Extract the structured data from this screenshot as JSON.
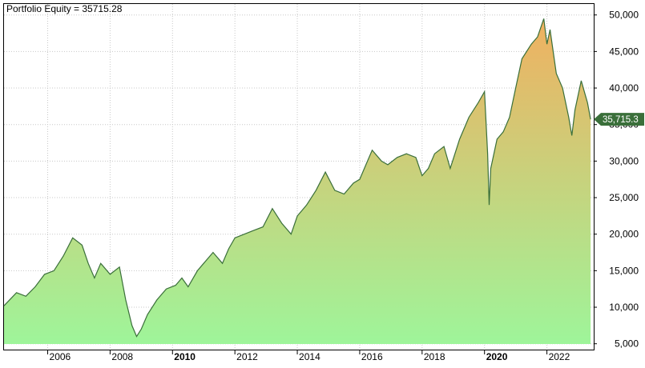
{
  "chart_data": {
    "type": "area",
    "title": "Portfolio Equity = 35715.28",
    "series": [
      {
        "name": "Portfolio Equity",
        "x": [
          2004.6,
          2005.0,
          2005.3,
          2005.6,
          2005.9,
          2006.2,
          2006.5,
          2006.8,
          2007.1,
          2007.3,
          2007.5,
          2007.7,
          2008.0,
          2008.3,
          2008.5,
          2008.7,
          2008.85,
          2009.0,
          2009.2,
          2009.5,
          2009.8,
          2010.1,
          2010.3,
          2010.5,
          2010.8,
          2011.0,
          2011.3,
          2011.6,
          2011.8,
          2012.0,
          2012.3,
          2012.6,
          2012.9,
          2013.2,
          2013.5,
          2013.8,
          2014.0,
          2014.3,
          2014.6,
          2014.9,
          2015.2,
          2015.5,
          2015.8,
          2016.0,
          2016.2,
          2016.4,
          2016.7,
          2016.9,
          2017.2,
          2017.5,
          2017.8,
          2018.0,
          2018.2,
          2018.4,
          2018.7,
          2018.9,
          2019.2,
          2019.5,
          2019.8,
          2020.0,
          2020.1,
          2020.15,
          2020.2,
          2020.4,
          2020.6,
          2020.8,
          2021.0,
          2021.2,
          2021.5,
          2021.7,
          2021.9,
          2022.0,
          2022.1,
          2022.3,
          2022.5,
          2022.7,
          2022.8,
          2022.9,
          2023.1,
          2023.3,
          2023.4
        ],
        "values": [
          10200,
          12000,
          11500,
          12800,
          14500,
          15000,
          17000,
          19500,
          18500,
          16000,
          14000,
          16000,
          14500,
          15500,
          11000,
          7500,
          6000,
          7000,
          9000,
          11000,
          12500,
          13000,
          14000,
          12800,
          15000,
          16000,
          17500,
          16000,
          18000,
          19500,
          20000,
          20500,
          21000,
          23500,
          21500,
          20000,
          22500,
          24000,
          26000,
          28500,
          26000,
          25500,
          27000,
          27500,
          29500,
          31500,
          30000,
          29500,
          30500,
          31000,
          30500,
          28000,
          29000,
          31000,
          32000,
          29000,
          33000,
          36000,
          38000,
          39500,
          31000,
          24000,
          29000,
          33000,
          34000,
          36000,
          40000,
          44000,
          46000,
          47000,
          49500,
          46000,
          48000,
          42000,
          40000,
          36000,
          33500,
          37000,
          41000,
          38000,
          35715
        ]
      }
    ],
    "ylim": [
      4200,
      51500
    ],
    "xlim": [
      2004.6,
      2023.5
    ],
    "x_ticks": [
      {
        "label": "2006",
        "value": 2006,
        "bold": false
      },
      {
        "label": "2008",
        "value": 2008,
        "bold": false
      },
      {
        "label": "2010",
        "value": 2010,
        "bold": true
      },
      {
        "label": "2012",
        "value": 2012,
        "bold": false
      },
      {
        "label": "2014",
        "value": 2014,
        "bold": false
      },
      {
        "label": "2016",
        "value": 2016,
        "bold": false
      },
      {
        "label": "2018",
        "value": 2018,
        "bold": false
      },
      {
        "label": "2020",
        "value": 2020,
        "bold": true
      },
      {
        "label": "2022",
        "value": 2022,
        "bold": false
      }
    ],
    "y_ticks": [
      {
        "label": "50,000",
        "value": 50000
      },
      {
        "label": "45,000",
        "value": 45000
      },
      {
        "label": "40,000",
        "value": 40000
      },
      {
        "label": "35,000",
        "value": 35000
      },
      {
        "label": "30,000",
        "value": 30000
      },
      {
        "label": "25,000",
        "value": 25000
      },
      {
        "label": "20,000",
        "value": 20000
      },
      {
        "label": "15,000",
        "value": 15000
      },
      {
        "label": "10,000",
        "value": 10000
      },
      {
        "label": "5,000",
        "value": 5000
      }
    ],
    "last_value_label": "35,715.3",
    "last_value": 35715.28,
    "grid": true,
    "legend": "none",
    "colors": {
      "line": "#3a6f3a",
      "fill_top": "#f0b060",
      "fill_bottom": "#9ef59a",
      "grid": "#c8c8c8",
      "frame": "#000000",
      "label_bg": "#3a6f3a",
      "label_text": "#ffffff"
    }
  }
}
